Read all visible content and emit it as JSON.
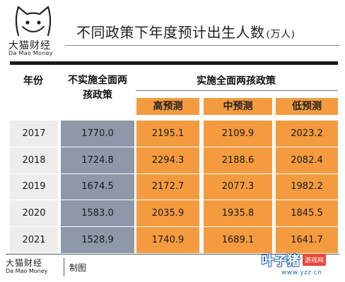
{
  "brand": {
    "name_cn": "大猫财经",
    "name_en": "Da Mao Money"
  },
  "title": {
    "main": "不同政策下年度预计出生人数",
    "unit": "(万人)"
  },
  "table": {
    "year_header": "年份",
    "no_policy_header": "不实施全面两孩政策",
    "policy_header": "实施全面两孩政策",
    "sub_headers": [
      "高预测",
      "中预测",
      "低预测"
    ],
    "rows": [
      {
        "year": "2017",
        "no_policy": "1770.0",
        "high": "2195.1",
        "mid": "2109.9",
        "low": "2023.2"
      },
      {
        "year": "2018",
        "no_policy": "1724.8",
        "high": "2294.3",
        "mid": "2188.6",
        "low": "2082.4"
      },
      {
        "year": "2019",
        "no_policy": "1674.5",
        "high": "2172.7",
        "mid": "2077.3",
        "low": "1982.2"
      },
      {
        "year": "2020",
        "no_policy": "1583.0",
        "high": "2035.9",
        "mid": "1935.8",
        "low": "1845.5"
      },
      {
        "year": "2021",
        "no_policy": "1528.9",
        "high": "1740.9",
        "mid": "1689.1",
        "low": "1641.7"
      }
    ]
  },
  "footer": {
    "brand_cn": "大猫财经",
    "brand_en": "Da Mao Money",
    "made": "制图"
  },
  "watermark": {
    "main": "叶子猪",
    "badge": "游戏网",
    "url": "www.yzz.cn"
  },
  "colors": {
    "accent": "#f49b3f",
    "no_policy_col": "#8e98a8",
    "year_col": "#ededed",
    "watermark": "#2a6cb5"
  }
}
